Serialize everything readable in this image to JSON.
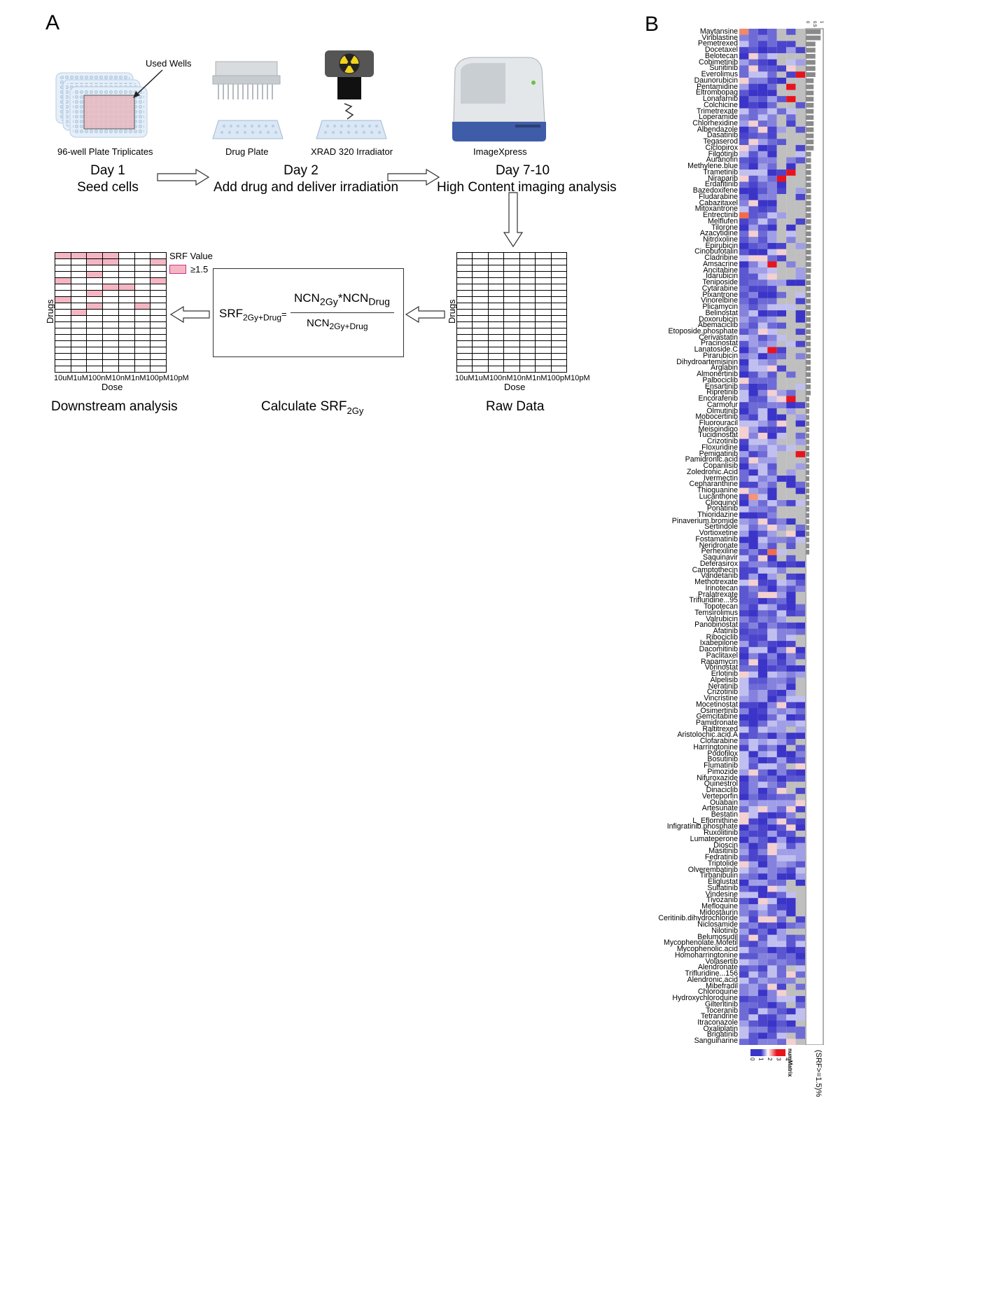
{
  "panel_a": {
    "letter": "A",
    "used_wells_label": "Used Wells",
    "captions": {
      "plate": "96-well Plate Triplicates",
      "drug_plate": "Drug Plate",
      "irradiator": "XRAD 320 Irradiator",
      "imager": "ImageXpress"
    },
    "steps": [
      {
        "day": "Day 1",
        "desc": "Seed cells"
      },
      {
        "day": "Day 2",
        "desc": "Add drug and deliver irradiation"
      },
      {
        "day": "Day 7-10",
        "desc": "High Content imaging analysis"
      }
    ],
    "legend": {
      "title": "SRF Value",
      "item": "≥1.5",
      "color": "#f4b6c2"
    },
    "axis": {
      "drugs": "Drugs",
      "dose": "Dose"
    },
    "dose_labels": [
      "10uM",
      "1uM",
      "100nM",
      "10nM",
      "1nM",
      "100pM",
      "10pM"
    ],
    "formula": {
      "lhs_main": "SRF",
      "lhs_sub": "2Gy+Drug",
      "lhs_eq": "=",
      "num_a": "NCN",
      "num_a_sub": "2Gy",
      "num_star": "*",
      "num_b": "NCN",
      "num_b_sub": "Drug",
      "den": "NCN",
      "den_sub": "2Gy+Drug"
    },
    "bottom_titles": {
      "downstream": "Downstream analysis",
      "calc_main": "Calculate SRF",
      "calc_sub": "2Gy",
      "raw": "Raw Data"
    },
    "highlighted_cells": [
      [
        0,
        0
      ],
      [
        0,
        1
      ],
      [
        0,
        2
      ],
      [
        0,
        3
      ],
      [
        1,
        2
      ],
      [
        1,
        3
      ],
      [
        1,
        6
      ],
      [
        3,
        2
      ],
      [
        4,
        0
      ],
      [
        4,
        6
      ],
      [
        5,
        3
      ],
      [
        5,
        4
      ],
      [
        6,
        2
      ],
      [
        7,
        0
      ],
      [
        8,
        2
      ],
      [
        8,
        5
      ],
      [
        9,
        1
      ]
    ]
  },
  "panel_b": {
    "letter": "B",
    "drugs": [
      "Maytansine",
      "Vinblastine",
      "Pemetrexed",
      "Docetaxel",
      "Belotecan",
      "Cobimetinib",
      "Sunitinib",
      "Everolimus",
      "Daunorubicin",
      "Pentamidine",
      "Eltrombopag",
      "Lonafarnib",
      "Colchicine",
      "Trimetrexate",
      "Loperamide",
      "Chlorhexidine",
      "Albendazole",
      "Dasatinib",
      "Tegaserod",
      "Ciclopirox",
      "Filgotinib",
      "Auranofin",
      "Methylene.blue",
      "Trametinib",
      "Niraparib",
      "Erdafitinib",
      "Bazedoxifene",
      "Fludarabine",
      "Cabazitaxel",
      "Mitoxantrone",
      "Entrectinib",
      "Melflufen",
      "Tilorone",
      "Azacytidine",
      "Nitroxoline",
      "Epirubicin",
      "Cinobufotalin",
      "Cladribine",
      "Amsacrine",
      "Ancitabine",
      "Idarubicin",
      "Teniposide",
      "Cytarabine",
      "Pixantrone",
      "Vinorelbine",
      "Plicamycin",
      "Belinostat",
      "Doxorubicin",
      "Abemaciclib",
      "Etoposide.phosphate",
      "Cerivastatin",
      "Pracinostat",
      "Lanatoside.C",
      "Pirarubicin",
      "Dihydroartemisinin",
      "Arglabin",
      "Almonertinib",
      "Palbociclib",
      "Ensartinib",
      "Ripretinib",
      "Encorafenib",
      "Carmofur",
      "Olmutinib",
      "Mobocertinib",
      "Fluorouracil",
      "Meisoindigo",
      "Tucidinostat",
      "Crizotinib",
      "Floxuridine",
      "Pemigatinib",
      "Pamidronic.acid",
      "Copanlisib",
      "Zoledronic.Acid",
      "Ivermectin",
      "Cepharanthine",
      "Thioguanine",
      "Lucanthone",
      "Clioquinol",
      "Ponatinib",
      "Thioridazine",
      "Pinaverium.bromide",
      "Sertindole",
      "Vortioxetine",
      "Fostamatinib",
      "Neridronate",
      "Perhexiline",
      "Saquinavir",
      "Deferasirox",
      "Camptothecin",
      "Vandetanib",
      "Methotrexate",
      "Irinotecan",
      "Pralatrexate",
      "Trifluridine...95",
      "Topotecan",
      "Temsirolimus",
      "Valrubicin",
      "Panobinostat",
      "Afatinib",
      "Ribociclib",
      "Ixabepilone",
      "Dacomitinib",
      "Paclitaxel",
      "Rapamycin",
      "Vorinostat",
      "Erlotinib",
      "Alpelisib",
      "Neratinib",
      "Crizotinib",
      "Vincristine",
      "Mocetinostat",
      "Osimertinib",
      "Gemcitabine",
      "Pamidronate",
      "Raltitrexed",
      "Aristolochic.acid.A",
      "Clofarabine",
      "Harringtonine",
      "Podofilox",
      "Bosutinib",
      "Flumatinib",
      "Pimozide",
      "Nifuroxazide",
      "Quinestrol",
      "Dinaciclib",
      "Verteporfin",
      "Ouabain",
      "Artesunate",
      "Bestatin",
      "L_Eflornithine",
      "Infigratinib.phosphate",
      "Ruxolitinib",
      "Lumateperone",
      "Dioscin",
      "Masitinib",
      "Fedratinib",
      "Triptolide",
      "Olverembatinib",
      "Tirbanibulin",
      "Eliglustat",
      "Sulfatinib",
      "Vindesine",
      "Tivozanib",
      "Mefloquine",
      "Midostaurin",
      "Ceritinib.dihydrochloride",
      "Niclosamide",
      "Nilotinib",
      "Belumosudil",
      "Mycophenolate.Mofetil",
      "Mycophenolic.acid",
      "Homoharringtonine",
      "Volasertib",
      "Alendronate",
      "Trifluridine...156",
      "Alendronic.acid",
      "Mibefradil",
      "Chloroquine",
      "Hydroxychloroquine",
      "Gilteritinib",
      "Toceranib",
      "Tetrandrine",
      "Itraconazole",
      "Oxaliplatin",
      "Brigatinib",
      "Sanguinarine"
    ],
    "legend_title": "numMatrix",
    "legend_ticks": [
      "0",
      "1",
      "2",
      "3",
      "4"
    ],
    "bar_axis_label": "(SRF>=1.5)%",
    "bar_ticks": [
      "0",
      "0.5",
      "1"
    ],
    "colors": {
      "low": "#3b34c8",
      "mid": "#ffffff",
      "high": "#e8141d",
      "missing": "#bfbfbf"
    }
  }
}
